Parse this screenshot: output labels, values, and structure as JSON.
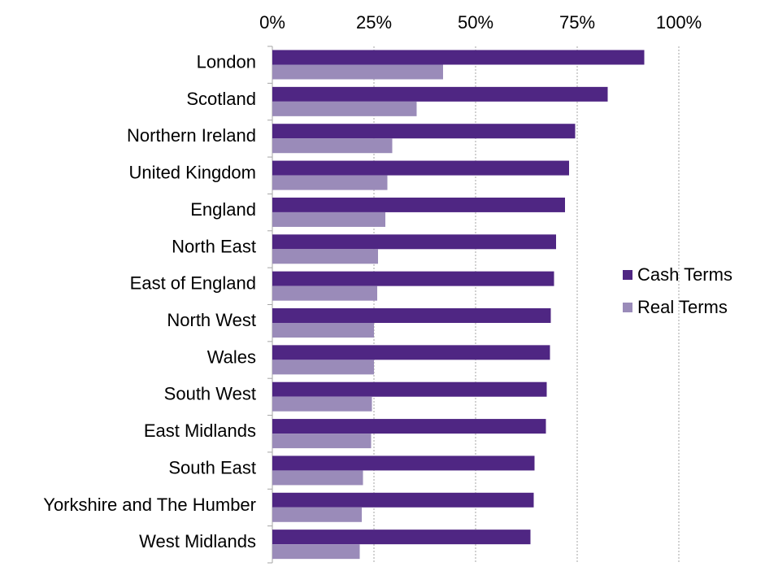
{
  "chart_data": {
    "type": "bar",
    "orientation": "horizontal",
    "categories": [
      "London",
      "Scotland",
      "Northern Ireland",
      "United Kingdom",
      "England",
      "North East",
      "East of England",
      "North West",
      "Wales",
      "South West",
      "East Midlands",
      "South East",
      "Yorkshire and The Humber",
      "West Midlands"
    ],
    "series": [
      {
        "name": "Cash Terms",
        "color": "#4f2683",
        "values": [
          91.5,
          82.5,
          74.5,
          73,
          72,
          69.8,
          69.3,
          68.5,
          68.3,
          67.5,
          67.3,
          64.5,
          64.3,
          63.5
        ]
      },
      {
        "name": "Real Terms",
        "color": "#9a8bb9",
        "values": [
          42,
          35.5,
          29.5,
          28.3,
          27.8,
          26,
          25.8,
          25,
          25,
          24.5,
          24.3,
          22.3,
          22,
          21.5
        ]
      }
    ],
    "xlim": [
      0,
      100
    ],
    "xticks": [
      0,
      25,
      50,
      75,
      100
    ],
    "xtick_labels": [
      "0%",
      "25%",
      "50%",
      "75%",
      "100%"
    ],
    "x_axis_position": "top",
    "grid": true,
    "legend_position": "right"
  }
}
